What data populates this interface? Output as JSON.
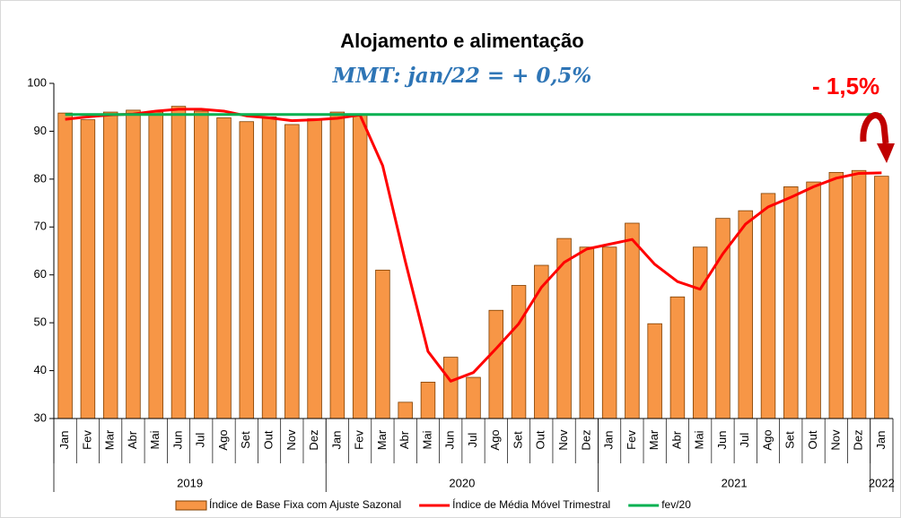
{
  "chart_data": {
    "type": "bar_line",
    "title": "Alojamento e alimentação",
    "subtitle": "MMT: jan/22 = + 0,5%",
    "annotation": "- 1,5%",
    "groups": [
      {
        "label": "2019",
        "categories": [
          "Jan",
          "Fev",
          "Mar",
          "Abr",
          "Mai",
          "Jun",
          "Jul",
          "Ago",
          "Set",
          "Out",
          "Nov",
          "Dez"
        ]
      },
      {
        "label": "2020",
        "categories": [
          "Jan",
          "Fev",
          "Mar",
          "Abr",
          "Mai",
          "Jun",
          "Jul",
          "Ago",
          "Set",
          "Out",
          "Nov",
          "Dez"
        ]
      },
      {
        "label": "2021",
        "categories": [
          "Jan",
          "Fev",
          "Mar",
          "Abr",
          "Mai",
          "Jun",
          "Jul",
          "Ago",
          "Set",
          "Out",
          "Nov",
          "Dez"
        ]
      },
      {
        "label": "2022",
        "categories": [
          "Jan"
        ]
      }
    ],
    "series": [
      {
        "name": "Índice de Base Fixa com Ajuste Sazonal",
        "type": "bar",
        "color": "#f79646",
        "values": [
          93.8,
          92.4,
          94.0,
          94.4,
          94.0,
          95.2,
          94.2,
          92.8,
          92.0,
          93.0,
          91.4,
          92.6,
          94.0,
          93.5,
          61.0,
          33.4,
          37.6,
          42.8,
          38.6,
          52.6,
          57.8,
          62.0,
          67.6,
          65.8,
          65.8,
          70.8,
          49.8,
          55.4,
          65.8,
          71.8,
          73.4,
          77.0,
          78.4,
          79.4,
          81.4,
          81.8,
          80.6
        ]
      },
      {
        "name": "Índice de Média Móvel Trimestral",
        "type": "line",
        "color": "#ff0000",
        "values": [
          92.5,
          93.0,
          93.4,
          93.6,
          94.2,
          94.6,
          94.6,
          94.2,
          93.2,
          92.8,
          92.2,
          92.4,
          92.7,
          93.4,
          82.8,
          62.8,
          44.0,
          37.8,
          39.6,
          44.6,
          49.8,
          57.4,
          62.6,
          65.4,
          66.4,
          67.4,
          62.2,
          58.6,
          57.0,
          64.4,
          70.6,
          74.2,
          76.2,
          78.4,
          80.2,
          81.2,
          81.3
        ]
      },
      {
        "name": "fev/20",
        "type": "line",
        "color": "#00b050",
        "values": [
          93.5,
          93.5,
          93.5,
          93.5,
          93.5,
          93.5,
          93.5,
          93.5,
          93.5,
          93.5,
          93.5,
          93.5,
          93.5,
          93.5,
          93.5,
          93.5,
          93.5,
          93.5,
          93.5,
          93.5,
          93.5,
          93.5,
          93.5,
          93.5,
          93.5,
          93.5,
          93.5,
          93.5,
          93.5,
          93.5,
          93.5,
          93.5,
          93.5,
          93.5,
          93.5,
          93.5,
          93.5
        ]
      }
    ],
    "ylim": [
      30,
      100
    ],
    "yticks": [
      30,
      40,
      50,
      60,
      70,
      80,
      90,
      100
    ]
  }
}
